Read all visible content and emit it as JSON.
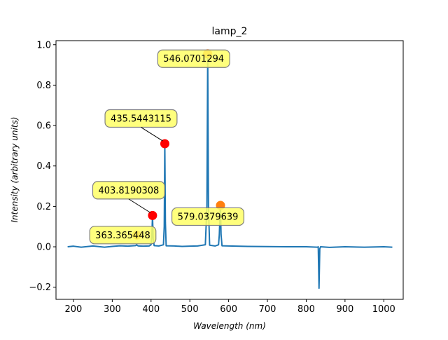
{
  "chart_data": {
    "type": "line",
    "title": "lamp_2",
    "xlabel": "Wavelength (nm)",
    "ylabel": "Intensity (arbitrary units)",
    "xlim": [
      155,
      1050
    ],
    "ylim": [
      -0.26,
      1.02
    ],
    "x_ticks": [
      200,
      300,
      400,
      500,
      600,
      700,
      800,
      900,
      1000
    ],
    "y_ticks": [
      -0.2,
      0.0,
      0.2,
      0.4,
      0.6,
      0.8,
      1.0
    ],
    "grid": false,
    "series": [
      {
        "color": "#1f77b4",
        "x": [
          185,
          200,
          220,
          250,
          280,
          300,
          320,
          340,
          360,
          363,
          365,
          368,
          380,
          395,
          400,
          402,
          403.8,
          405.5,
          408,
          420,
          432,
          434,
          435.5,
          437,
          439,
          460,
          480,
          500,
          520,
          540,
          544,
          546.1,
          548,
          551,
          565,
          574,
          576,
          578,
          579.04,
          580.5,
          583,
          600,
          650,
          700,
          750,
          800,
          829,
          831,
          833,
          835,
          837,
          860,
          900,
          950,
          1000,
          1022
        ],
        "y": [
          0.0,
          0.003,
          -0.002,
          0.004,
          -0.002,
          0.002,
          0.005,
          0.003,
          0.006,
          0.01,
          0.006,
          0.004,
          0.003,
          0.004,
          0.01,
          0.05,
          0.155,
          0.04,
          0.006,
          0.004,
          0.01,
          0.1,
          0.51,
          0.12,
          0.005,
          0.004,
          0.002,
          0.003,
          0.004,
          0.01,
          0.2,
          0.95,
          0.2,
          0.008,
          0.004,
          0.01,
          0.06,
          0.17,
          0.2,
          0.06,
          0.005,
          0.004,
          0.002,
          0.001,
          0.0,
          0.0,
          -0.002,
          0.0,
          -0.205,
          -0.01,
          0.0,
          -0.003,
          0.0,
          -0.002,
          0.0,
          -0.002
        ]
      }
    ],
    "markers": [
      {
        "x": 363.365448,
        "y": 0.058,
        "color": "#ff7f0e",
        "label": "363.365448"
      },
      {
        "x": 403.8190308,
        "y": 0.155,
        "color": "#ff0000",
        "label": "403.8190308"
      },
      {
        "x": 435.5443115,
        "y": 0.51,
        "color": "#ff0000",
        "label": "435.5443115"
      },
      {
        "x": 546.0701294,
        "y": 0.955,
        "color": "#ff7f0e",
        "label": "546.0701294"
      },
      {
        "x": 579.0379639,
        "y": 0.205,
        "color": "#ff7f0e",
        "label": "579.0379639"
      }
    ],
    "annotation_style": {
      "fill": "#ffff66",
      "stroke": "#808080"
    }
  }
}
